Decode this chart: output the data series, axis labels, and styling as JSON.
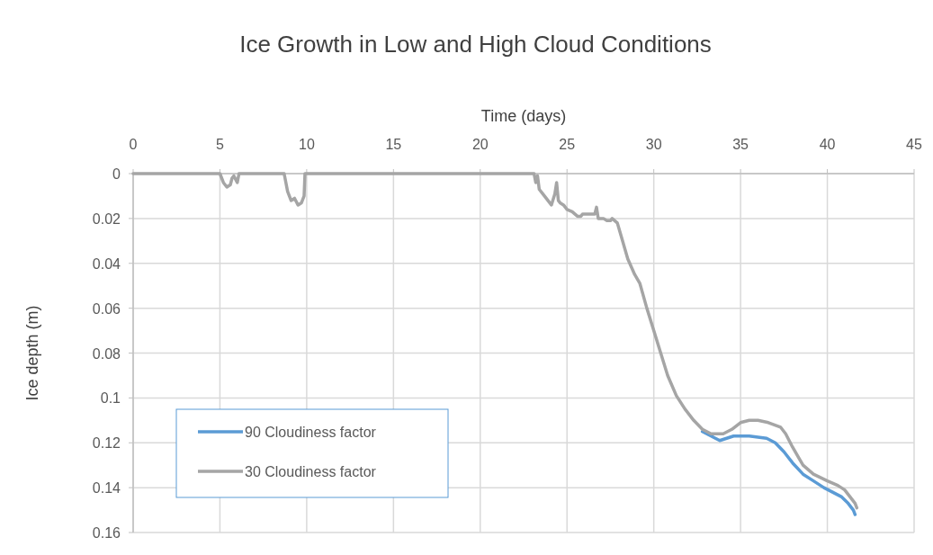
{
  "chart_data": {
    "type": "line",
    "title": "Ice Growth in Low and High Cloud Conditions",
    "xlabel": "Time (days)",
    "ylabel": "Ice depth (m)",
    "xlim": [
      0,
      45
    ],
    "xticks": [
      0,
      5,
      10,
      15,
      20,
      25,
      30,
      35,
      40,
      45
    ],
    "ylim": [
      0.16,
      0
    ],
    "yticks": [
      0,
      0.02,
      0.04,
      0.06,
      0.08,
      0.1,
      0.12,
      0.14,
      0.16
    ],
    "grid": true,
    "legend": "bottom left",
    "marker": "none",
    "line_style": "solid",
    "series": [
      {
        "name": "90 Cloudiness factor",
        "color": "#5b9bd5",
        "x": [
          32.8,
          33.3,
          33.8,
          34.2,
          34.6,
          35.5,
          36.5,
          37.0,
          37.5,
          38.0,
          38.6,
          39.2,
          39.8,
          40.3,
          40.8,
          41.2,
          41.5,
          41.6
        ],
        "values": [
          0.115,
          0.117,
          0.119,
          0.118,
          0.117,
          0.117,
          0.118,
          0.12,
          0.124,
          0.129,
          0.134,
          0.137,
          0.14,
          0.142,
          0.144,
          0.147,
          0.15,
          0.152
        ]
      },
      {
        "name": "30 Cloudiness factor",
        "color": "#a5a5a5",
        "x": [
          0,
          5,
          5.2,
          5.4,
          5.6,
          5.7,
          5.8,
          6.0,
          6.1,
          8.7,
          8.9,
          9.1,
          9.3,
          9.5,
          9.7,
          9.85,
          9.9,
          23.1,
          23.2,
          23.3,
          23.4,
          23.6,
          23.9,
          24.1,
          24.3,
          24.4,
          24.5,
          24.6,
          24.8,
          25.0,
          25.3,
          25.6,
          25.8,
          25.9,
          26.6,
          26.7,
          26.8,
          27.1,
          27.3,
          27.5,
          27.6,
          27.9,
          28.2,
          28.5,
          28.9,
          29.2,
          29.6,
          30.0,
          30.4,
          30.8,
          31.3,
          31.8,
          32.3,
          32.8,
          33.3,
          34.0,
          34.5,
          35.0,
          35.5,
          36.0,
          36.6,
          37.3,
          37.6,
          38.0,
          38.6,
          39.2,
          40.0,
          40.6,
          41.0,
          41.3,
          41.6,
          41.7
        ],
        "values": [
          0,
          0,
          0.004,
          0.006,
          0.005,
          0.002,
          0.001,
          0.004,
          0,
          0,
          0.008,
          0.012,
          0.011,
          0.014,
          0.013,
          0.01,
          0,
          0,
          0.004,
          0.001,
          0.007,
          0.009,
          0.012,
          0.014,
          0.009,
          0.004,
          0.012,
          0.013,
          0.014,
          0.016,
          0.017,
          0.019,
          0.019,
          0.018,
          0.018,
          0.015,
          0.02,
          0.02,
          0.021,
          0.021,
          0.02,
          0.022,
          0.03,
          0.038,
          0.045,
          0.049,
          0.06,
          0.07,
          0.08,
          0.09,
          0.099,
          0.105,
          0.11,
          0.114,
          0.116,
          0.116,
          0.114,
          0.111,
          0.11,
          0.11,
          0.111,
          0.113,
          0.116,
          0.122,
          0.13,
          0.134,
          0.137,
          0.139,
          0.141,
          0.144,
          0.147,
          0.149
        ]
      }
    ]
  }
}
